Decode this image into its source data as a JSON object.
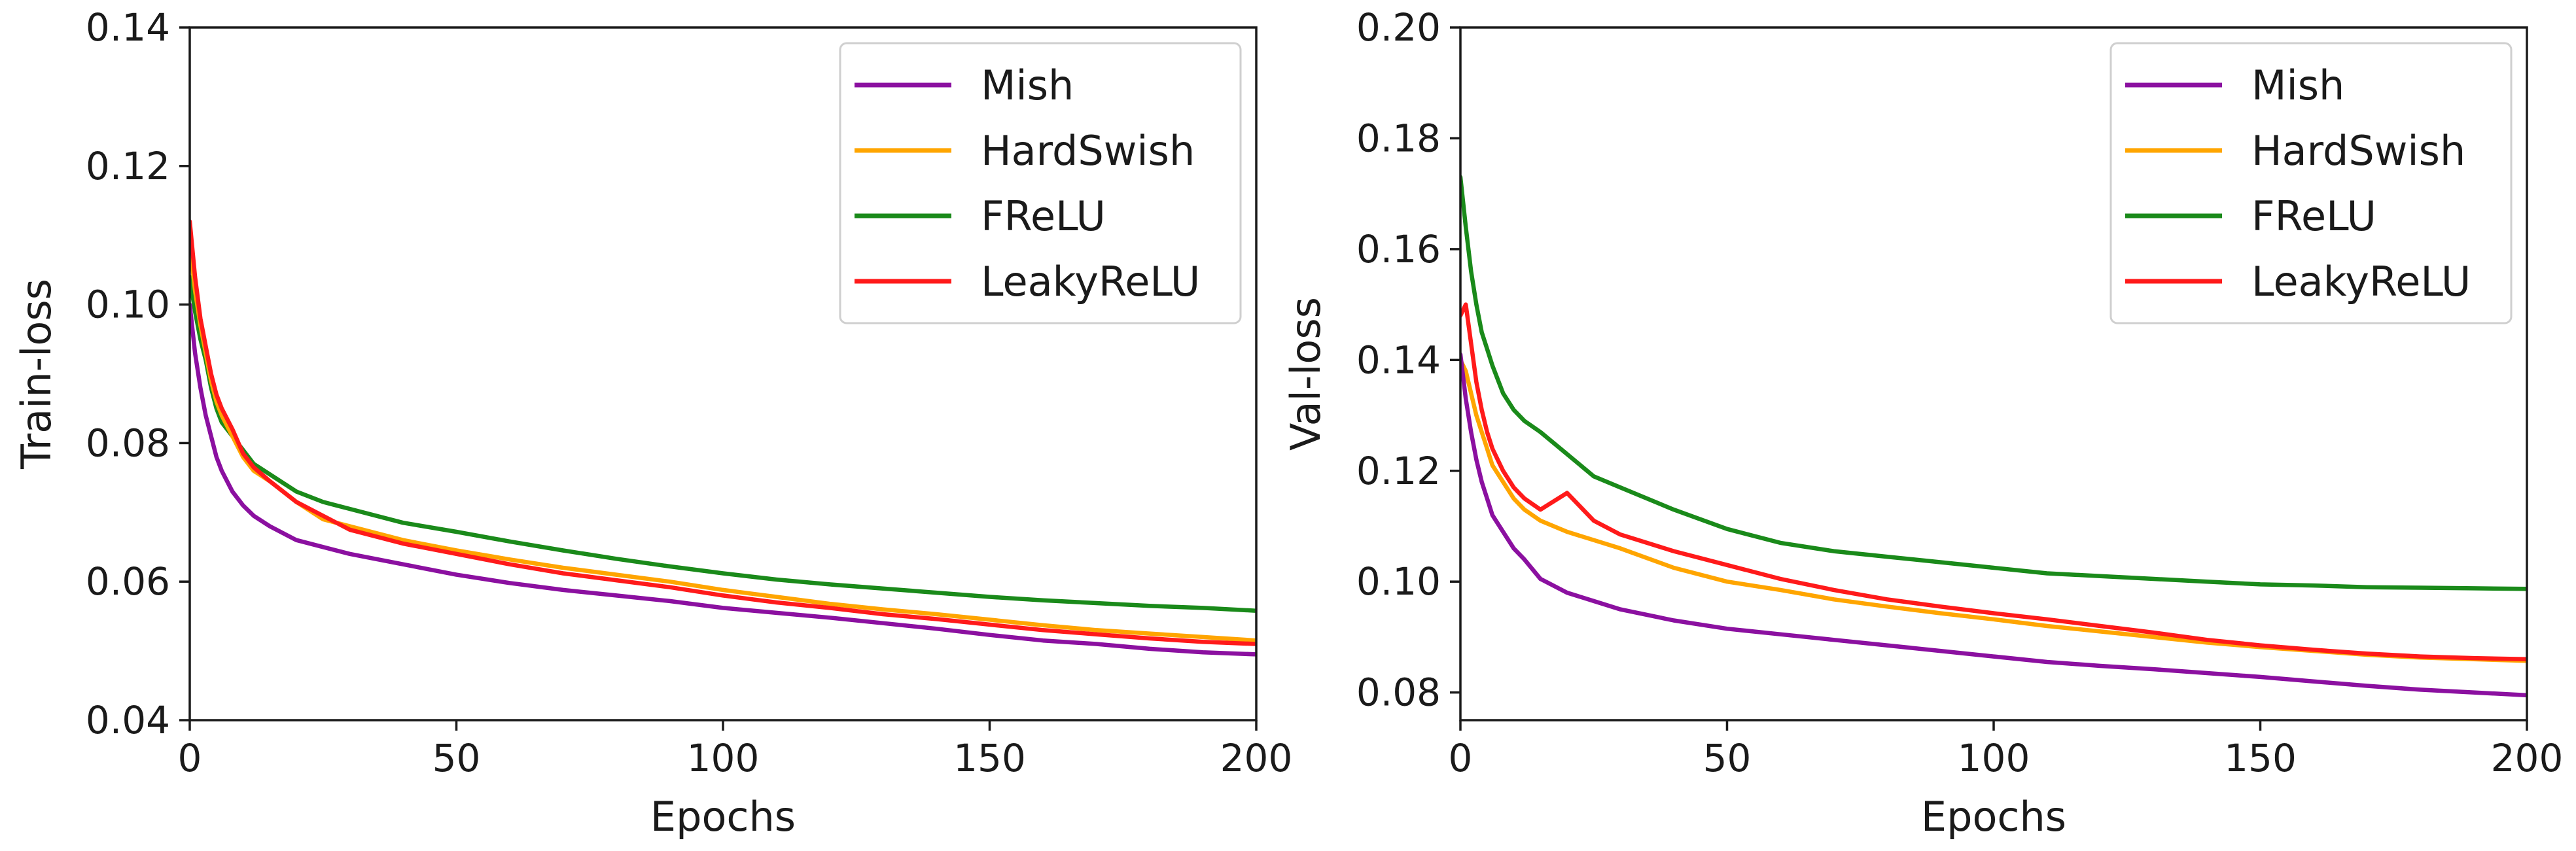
{
  "chart_data": [
    {
      "type": "line",
      "xlabel": "Epochs",
      "ylabel": "Train-loss",
      "xlim": [
        0,
        200
      ],
      "ylim": [
        0.04,
        0.14
      ],
      "xticks": [
        0,
        50,
        100,
        150,
        200
      ],
      "xtick_labels": [
        "0",
        "50",
        "100",
        "150",
        "200"
      ],
      "yticks": [
        0.04,
        0.06,
        0.08,
        0.1,
        0.12,
        0.14
      ],
      "ytick_labels": [
        "0.04",
        "0.06",
        "0.08",
        "0.10",
        "0.12",
        "0.14"
      ],
      "legend_position": "top-right",
      "x": [
        0,
        1,
        2,
        3,
        4,
        5,
        6,
        8,
        10,
        12,
        15,
        20,
        25,
        30,
        40,
        50,
        60,
        70,
        80,
        90,
        100,
        110,
        120,
        130,
        140,
        150,
        160,
        170,
        180,
        190,
        200
      ],
      "series": [
        {
          "name": "Mish",
          "color": "#8b10a0",
          "values": [
            0.1,
            0.093,
            0.088,
            0.084,
            0.081,
            0.078,
            0.076,
            0.073,
            0.071,
            0.0695,
            0.068,
            0.066,
            0.065,
            0.064,
            0.0625,
            0.061,
            0.0598,
            0.0588,
            0.058,
            0.0572,
            0.0562,
            0.0555,
            0.0548,
            0.054,
            0.0532,
            0.0523,
            0.0515,
            0.051,
            0.0503,
            0.0498,
            0.0495
          ]
        },
        {
          "name": "HardSwish",
          "color": "#ffa500",
          "values": [
            0.109,
            0.102,
            0.097,
            0.093,
            0.089,
            0.086,
            0.084,
            0.081,
            0.078,
            0.076,
            0.0745,
            0.0715,
            0.069,
            0.068,
            0.066,
            0.0645,
            0.0632,
            0.062,
            0.061,
            0.06,
            0.0588,
            0.0578,
            0.0568,
            0.056,
            0.0553,
            0.0545,
            0.0537,
            0.053,
            0.0525,
            0.052,
            0.0515
          ]
        },
        {
          "name": "FReLU",
          "color": "#1a8a1a",
          "values": [
            0.104,
            0.099,
            0.095,
            0.092,
            0.088,
            0.085,
            0.083,
            0.081,
            0.079,
            0.077,
            0.0755,
            0.073,
            0.0715,
            0.0705,
            0.0685,
            0.0672,
            0.0658,
            0.0645,
            0.0633,
            0.0622,
            0.0612,
            0.0603,
            0.0596,
            0.059,
            0.0584,
            0.0578,
            0.0573,
            0.0569,
            0.0565,
            0.0562,
            0.0558
          ]
        },
        {
          "name": "LeakyReLU",
          "color": "#ff1a1a",
          "values": [
            0.112,
            0.104,
            0.098,
            0.094,
            0.09,
            0.087,
            0.085,
            0.082,
            0.0785,
            0.0765,
            0.0745,
            0.0715,
            0.0695,
            0.0675,
            0.0655,
            0.064,
            0.0625,
            0.0612,
            0.0602,
            0.0592,
            0.058,
            0.057,
            0.0562,
            0.0553,
            0.0546,
            0.0538,
            0.053,
            0.0524,
            0.0518,
            0.0513,
            0.051
          ]
        }
      ]
    },
    {
      "type": "line",
      "xlabel": "Epochs",
      "ylabel": "Val-loss",
      "xlim": [
        0,
        200
      ],
      "ylim": [
        0.075,
        0.2
      ],
      "xticks": [
        0,
        50,
        100,
        150,
        200
      ],
      "xtick_labels": [
        "0",
        "50",
        "100",
        "150",
        "200"
      ],
      "yticks": [
        0.08,
        0.1,
        0.12,
        0.14,
        0.16,
        0.18,
        0.2
      ],
      "ytick_labels": [
        "0.08",
        "0.10",
        "0.12",
        "0.14",
        "0.16",
        "0.18",
        "0.20"
      ],
      "legend_position": "top-right",
      "x": [
        0,
        1,
        2,
        3,
        4,
        5,
        6,
        8,
        10,
        12,
        15,
        20,
        25,
        30,
        40,
        50,
        60,
        70,
        80,
        90,
        100,
        110,
        120,
        130,
        140,
        150,
        160,
        170,
        180,
        190,
        200
      ],
      "series": [
        {
          "name": "Mish",
          "color": "#8b10a0",
          "values": [
            0.141,
            0.133,
            0.127,
            0.122,
            0.118,
            0.115,
            0.112,
            0.109,
            0.106,
            0.104,
            0.1005,
            0.098,
            0.0965,
            0.095,
            0.093,
            0.0915,
            0.0905,
            0.0895,
            0.0885,
            0.0875,
            0.0865,
            0.0855,
            0.0848,
            0.0842,
            0.0835,
            0.0828,
            0.082,
            0.0812,
            0.0805,
            0.08,
            0.0795
          ]
        },
        {
          "name": "HardSwish",
          "color": "#ffa500",
          "values": [
            0.14,
            0.138,
            0.134,
            0.13,
            0.127,
            0.124,
            0.121,
            0.118,
            0.115,
            0.113,
            0.111,
            0.109,
            0.1075,
            0.106,
            0.1025,
            0.1,
            0.0985,
            0.0968,
            0.0955,
            0.0943,
            0.0932,
            0.092,
            0.091,
            0.09,
            0.089,
            0.0882,
            0.0875,
            0.0868,
            0.0863,
            0.086,
            0.0857
          ]
        },
        {
          "name": "FReLU",
          "color": "#1a8a1a",
          "values": [
            0.173,
            0.164,
            0.156,
            0.15,
            0.145,
            0.142,
            0.139,
            0.134,
            0.131,
            0.129,
            0.127,
            0.123,
            0.119,
            0.117,
            0.113,
            0.1095,
            0.107,
            0.1055,
            0.1045,
            0.1035,
            0.1025,
            0.1015,
            0.101,
            0.1005,
            0.1,
            0.0995,
            0.0993,
            0.099,
            0.0989,
            0.0988,
            0.0987
          ]
        },
        {
          "name": "LeakyReLU",
          "color": "#ff1a1a",
          "values": [
            0.148,
            0.15,
            0.143,
            0.136,
            0.131,
            0.127,
            0.124,
            0.12,
            0.117,
            0.115,
            0.113,
            0.116,
            0.111,
            0.1085,
            0.1055,
            0.103,
            0.1005,
            0.0985,
            0.0968,
            0.0955,
            0.0943,
            0.0932,
            0.092,
            0.0908,
            0.0895,
            0.0885,
            0.0877,
            0.087,
            0.0865,
            0.0862,
            0.086
          ]
        }
      ]
    }
  ]
}
